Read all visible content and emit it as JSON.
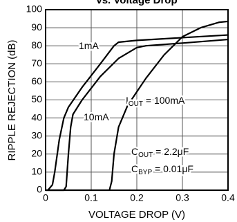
{
  "chart_data": {
    "type": "line",
    "title": "vs. Voltage Drop",
    "xlabel": "VOLTAGE DROP (V)",
    "ylabel": "RIPPLE REJECTION (dB)",
    "xlim": [
      0,
      0.4
    ],
    "xticks": [
      0,
      0.1,
      0.2,
      0.3,
      0.4
    ],
    "ylim": [
      0,
      100
    ],
    "yticks": [
      0,
      10,
      20,
      30,
      40,
      50,
      60,
      70,
      80,
      90,
      100
    ],
    "grid": true,
    "series": [
      {
        "color": "#000000",
        "x": [
          0.005,
          0.015,
          0.02,
          0.03,
          0.04,
          0.05,
          0.08,
          0.12,
          0.15,
          0.16,
          0.2,
          0.3,
          0.4
        ],
        "values": [
          0,
          3,
          10,
          28,
          40,
          46,
          57,
          70,
          80,
          82,
          83,
          84.5,
          86
        ]
      },
      {
        "color": "#000000",
        "x": [
          0,
          0.04,
          0.045,
          0.05,
          0.055,
          0.06,
          0.08,
          0.12,
          0.16,
          0.2,
          0.22,
          0.3,
          0.4
        ],
        "values": [
          0,
          0,
          2,
          20,
          35,
          42,
          50,
          63,
          73,
          79,
          80,
          81.5,
          83.5
        ]
      },
      {
        "color": "#000000",
        "x": [
          0,
          0.14,
          0.145,
          0.15,
          0.16,
          0.18,
          0.22,
          0.26,
          0.3,
          0.34,
          0.38,
          0.4
        ],
        "values": [
          0,
          0,
          5,
          20,
          35,
          47,
          62,
          75,
          85,
          90,
          93,
          93.5
        ]
      }
    ],
    "annotations": [
      {
        "text": "1mA"
      },
      {
        "text": "10mA"
      },
      {
        "main": "I",
        "sub": "OUT",
        "text": " = 100mA"
      },
      {
        "main": "C",
        "sub": "OUT",
        "text": " = 2.2μF"
      },
      {
        "main": "C",
        "sub": "BYP",
        "text": " = 0.01μF"
      }
    ]
  }
}
